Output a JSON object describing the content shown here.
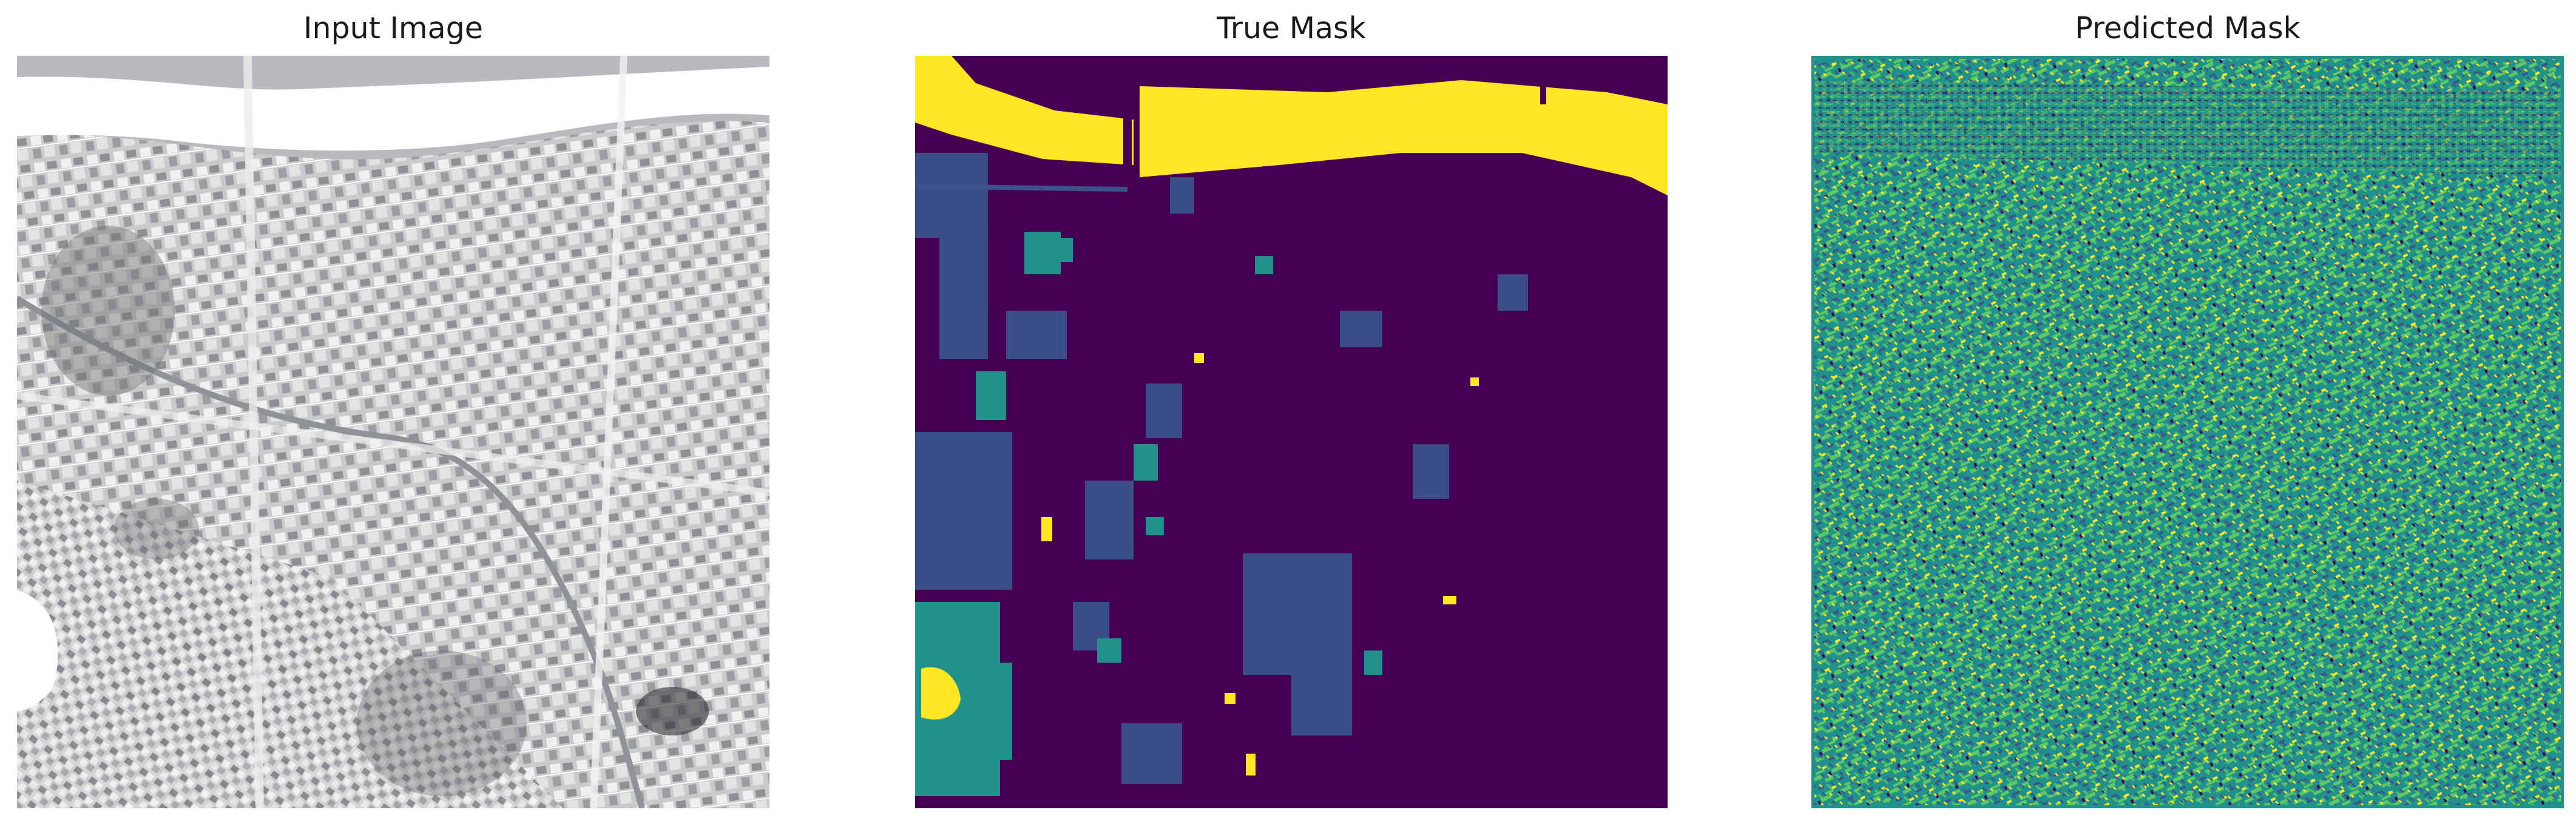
{
  "panels": [
    {
      "title": "Input Image"
    },
    {
      "title": "True Mask"
    },
    {
      "title": "Predicted Mask"
    }
  ],
  "colors": {
    "viridis_purple": "#440154",
    "viridis_indigo": "#3b528b",
    "viridis_teal": "#21918c",
    "viridis_green": "#5ec962",
    "viridis_yellow": "#fde725",
    "aerial_light": "#e6e6e6",
    "aerial_dark": "#6e7074"
  }
}
